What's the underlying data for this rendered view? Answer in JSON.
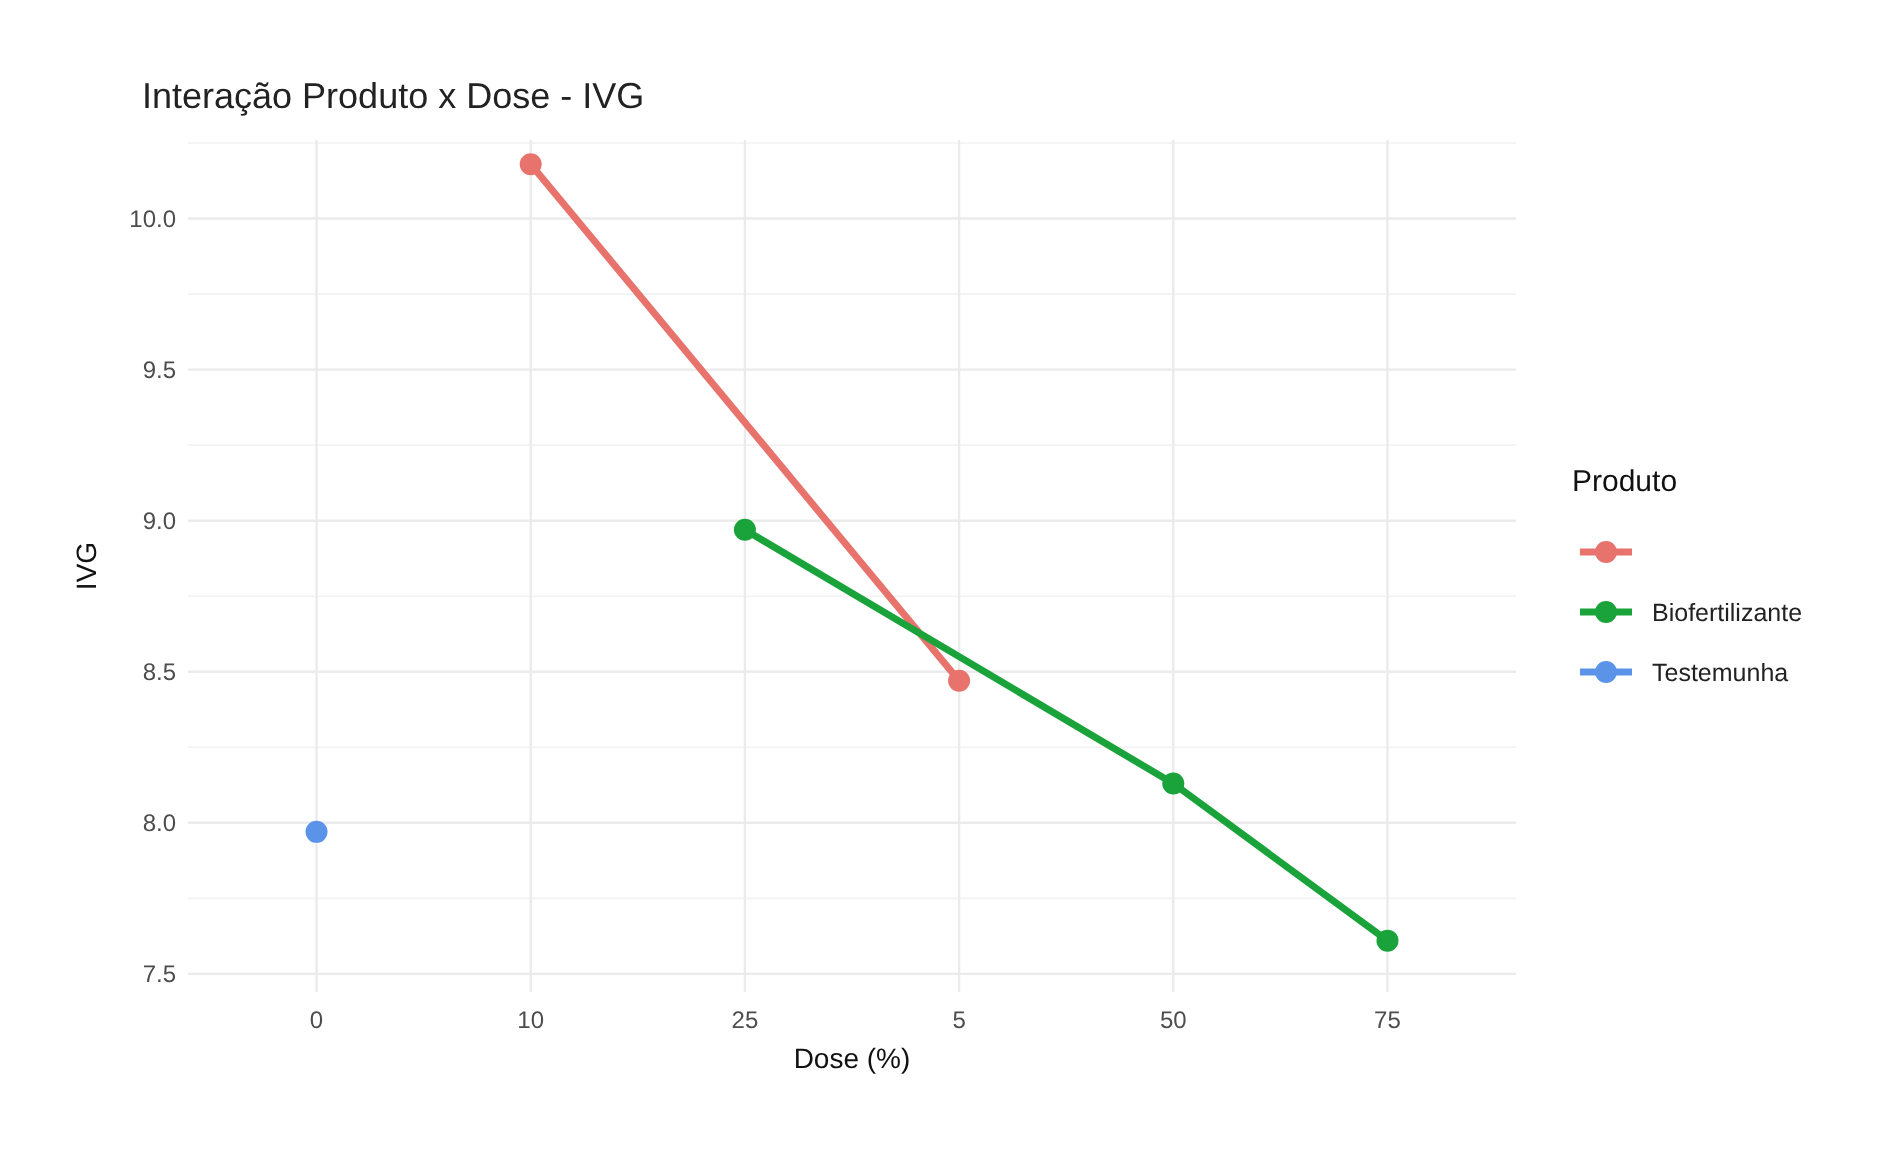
{
  "chart_data": {
    "type": "line",
    "title": "Interação Produto x Dose - IVG",
    "xlabel": "Dose (%)",
    "ylabel": "IVG",
    "legend_title": "Produto",
    "categories": [
      "0",
      "10",
      "25",
      "5",
      "50",
      "75"
    ],
    "series": [
      {
        "color": "#e8736c",
        "values": [
          null,
          10.18,
          null,
          8.47,
          null,
          null
        ]
      },
      {
        "name": "Biofertilizante",
        "color": "#1aa33a",
        "values": [
          null,
          null,
          8.97,
          null,
          8.13,
          7.61
        ]
      },
      {
        "name": "Testemunha",
        "color": "#5b93e8",
        "values": [
          7.97,
          null,
          null,
          null,
          null,
          null
        ]
      }
    ],
    "ylim": [
      7.44,
      10.26
    ],
    "yticks": [
      {
        "value": 7.5,
        "label": "7.5"
      },
      {
        "value": 8,
        "label": "8.0"
      },
      {
        "value": 8.5,
        "label": "8.5"
      },
      {
        "value": 9,
        "label": "9.0"
      },
      {
        "value": 9.5,
        "label": "9.5"
      },
      {
        "value": 10,
        "label": "10.0"
      }
    ],
    "grid": true,
    "legend": "right",
    "marker": "circle",
    "line_style": "solid"
  }
}
